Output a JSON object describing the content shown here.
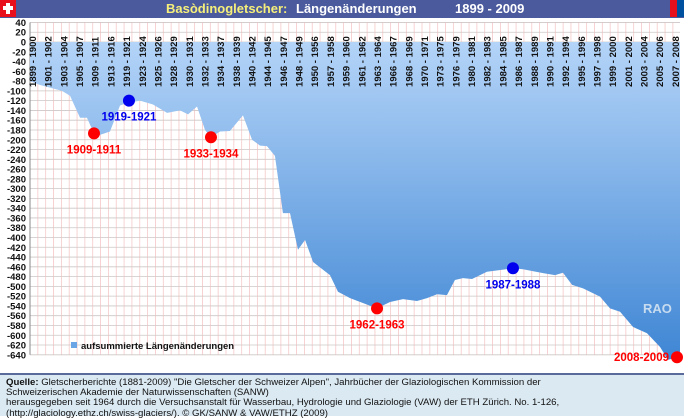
{
  "header": {
    "title_glacier": "Basòdinogletscher:",
    "title_topic": "Längenänderungen",
    "title_period": "1899 - 2009",
    "flag_icon": "swiss-flag-icon"
  },
  "colors": {
    "header_bg": "#4b5a9c",
    "area_top": "#b4d4f8",
    "area_bottom": "#3f86d4",
    "red_marker": "#ff0000",
    "blue_marker": "#0000ee"
  },
  "chart_data": {
    "type": "area",
    "title": "Basòdinogletscher: Längenänderungen 1899 - 2009",
    "ylabel": "",
    "xlabel": "",
    "ylim": [
      -640,
      40
    ],
    "ytick_step": 20,
    "grid": true,
    "categories": [
      "1899 - 1900",
      "1901 - 1902",
      "1903 - 1904",
      "1905 - 1907",
      "1909 - 1911",
      "1913 - 1916",
      "1919 - 1921",
      "1923 - 1924",
      "1925 - 1926",
      "1928 - 1929",
      "1930 - 1931",
      "1932 - 1933",
      "1934 - 1937",
      "1938 - 1939",
      "1940 - 1942",
      "1944 - 1945",
      "1946 - 1947",
      "1948 - 1949",
      "1950 - 1956",
      "1957 - 1958",
      "1959 - 1960",
      "1961 - 1962",
      "1963 - 1964",
      "1966 - 1967",
      "1968 - 1969",
      "1970 - 1971",
      "1973 - 1975",
      "1976 - 1979",
      "1980 - 1981",
      "1982 - 1983",
      "1984 - 1985",
      "1986 - 1987",
      "1988 - 1989",
      "1990 - 1991",
      "1992 - 1994",
      "1995 - 1996",
      "1997 - 1998",
      "1999 - 2000",
      "2001 - 2002",
      "2003 - 2004",
      "2005 - 2006",
      "2007 - 2008"
    ],
    "series": [
      {
        "name": "aufsummierte Längenänderungen",
        "points": [
          [
            -0.19,
            -80
          ],
          [
            0.45,
            -88
          ],
          [
            1.85,
            -100
          ],
          [
            2.36,
            -110
          ],
          [
            3.0,
            -155
          ],
          [
            3.44,
            -155
          ],
          [
            3.89,
            -187
          ],
          [
            4.27,
            -190
          ],
          [
            4.91,
            -183
          ],
          [
            5.55,
            -130
          ],
          [
            5.99,
            -125
          ],
          [
            6.82,
            -120
          ],
          [
            7.65,
            -128
          ],
          [
            8.55,
            -145
          ],
          [
            9.38,
            -140
          ],
          [
            9.89,
            -148
          ],
          [
            10.46,
            -132
          ],
          [
            10.97,
            -180
          ],
          [
            11.35,
            -195
          ],
          [
            11.93,
            -183
          ],
          [
            12.56,
            -182
          ],
          [
            13.39,
            -150
          ],
          [
            13.97,
            -200
          ],
          [
            14.48,
            -212
          ],
          [
            14.92,
            -213
          ],
          [
            15.43,
            -233
          ],
          [
            15.94,
            -350
          ],
          [
            16.39,
            -350
          ],
          [
            16.9,
            -425
          ],
          [
            17.35,
            -405
          ],
          [
            17.86,
            -450
          ],
          [
            18.94,
            -477
          ],
          [
            19.45,
            -511
          ],
          [
            20.22,
            -524
          ],
          [
            21.94,
            -545
          ],
          [
            22.77,
            -532
          ],
          [
            23.6,
            -526
          ],
          [
            24.49,
            -530
          ],
          [
            25.13,
            -524
          ],
          [
            25.77,
            -516
          ],
          [
            26.4,
            -518
          ],
          [
            26.91,
            -487
          ],
          [
            27.42,
            -483
          ],
          [
            28.0,
            -485
          ],
          [
            28.95,
            -470
          ],
          [
            30.61,
            -463
          ],
          [
            31.25,
            -465
          ],
          [
            32.53,
            -473
          ],
          [
            33.29,
            -477
          ],
          [
            33.8,
            -472
          ],
          [
            34.38,
            -497
          ],
          [
            35.08,
            -504
          ],
          [
            36.16,
            -521
          ],
          [
            36.8,
            -545
          ],
          [
            37.44,
            -552
          ],
          [
            38.27,
            -583
          ],
          [
            39.16,
            -596
          ],
          [
            39.99,
            -624
          ],
          [
            40.5,
            -650
          ],
          [
            41.14,
            -645
          ]
        ]
      }
    ],
    "annotations": [
      {
        "label": "1909-1911",
        "x": 3.89,
        "y": -187,
        "color": "red"
      },
      {
        "label": "1919-1921",
        "x": 6.12,
        "y": -120,
        "color": "blue"
      },
      {
        "label": "1933-1934",
        "x": 11.35,
        "y": -195,
        "color": "red"
      },
      {
        "label": "1962-1963",
        "x": 21.94,
        "y": -545,
        "color": "red"
      },
      {
        "label": "1987-1988",
        "x": 30.61,
        "y": -463,
        "color": "blue"
      },
      {
        "label": "2008-2009",
        "x": 41.14,
        "y": -645,
        "color": "red"
      }
    ],
    "legend": {
      "label": "aufsummierte Längenänderungen",
      "placement": "bottom-left"
    },
    "watermark": "RAO"
  },
  "footer": {
    "source_label": "Quelle:",
    "line1": " Gletscherberichte (1881-2009) \"Die Gletscher der Schweizer Alpen\", Jahrbücher der Glaziologischen Kommission der",
    "line2": "Schweizerischen Akademie der Naturwissenschaften (SANW)",
    "line3": "herausgegeben seit 1964 durch die Versuchsanstalt für Wasserbau, Hydrologie und Glaziologie (VAW) der ETH Zürich. No. 1-126,",
    "line4": "(http://glaciology.ethz.ch/swiss-glaciers/). © GK/SANW & VAW/ETHZ (2009)"
  }
}
